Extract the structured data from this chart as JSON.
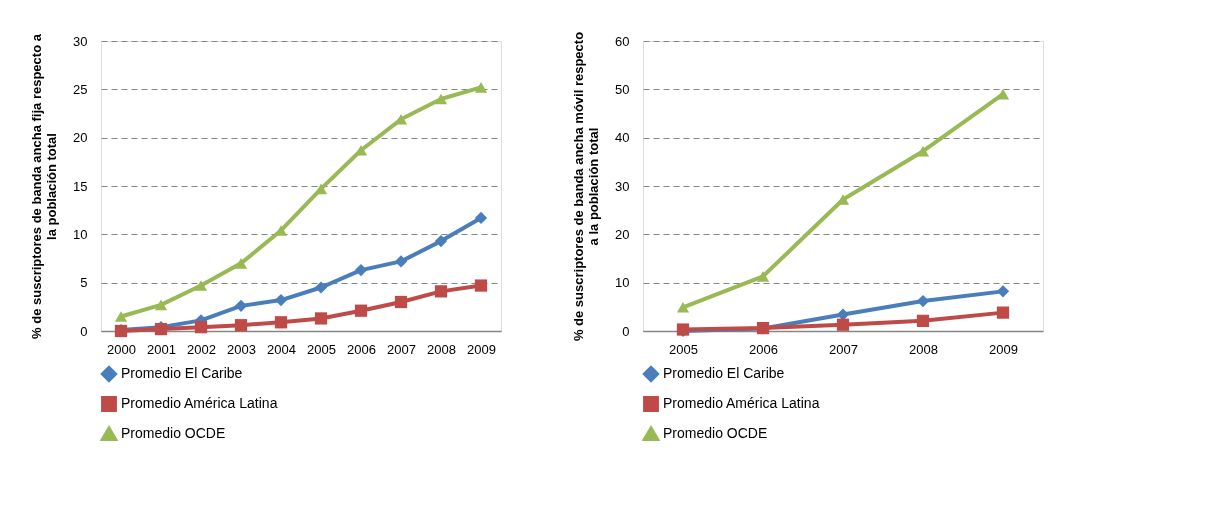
{
  "chart_data": [
    {
      "type": "line",
      "ylabel": "% de suscriptores de banda ancha fija respecto a\nla población total",
      "categories": [
        "2000",
        "2001",
        "2002",
        "2003",
        "2004",
        "2005",
        "2006",
        "2007",
        "2008",
        "2009"
      ],
      "series": [
        {
          "name": "Promedio El Caribe",
          "color": "#4a7ebb",
          "marker": "diamond",
          "values": [
            0.1,
            0.4,
            1.1,
            2.6,
            3.2,
            4.5,
            6.3,
            7.2,
            9.3,
            11.7
          ]
        },
        {
          "name": "Promedio América Latina",
          "color": "#be4b48",
          "marker": "square",
          "values": [
            0.0,
            0.2,
            0.4,
            0.6,
            0.9,
            1.3,
            2.1,
            3.0,
            4.1,
            4.7
          ]
        },
        {
          "name": "Promedio OCDE",
          "color": "#98b954",
          "marker": "triangle",
          "values": [
            1.5,
            2.7,
            4.7,
            7.0,
            10.4,
            14.7,
            18.7,
            21.9,
            24.0,
            25.2
          ]
        }
      ],
      "ylim": [
        0,
        30
      ],
      "yticks": [
        0,
        5,
        10,
        15,
        20,
        25,
        30
      ],
      "grid": "y",
      "legend": "bottom",
      "line_style": "solid"
    },
    {
      "type": "line",
      "ylabel": "% de suscriptores de banda ancha móvil respecto\na la población total",
      "categories": [
        "2005",
        "2006",
        "2007",
        "2008",
        "2009"
      ],
      "series": [
        {
          "name": "Promedio El Caribe",
          "color": "#4a7ebb",
          "marker": "diamond",
          "values": [
            0.0,
            0.5,
            3.4,
            6.2,
            8.2
          ]
        },
        {
          "name": "Promedio América Latina",
          "color": "#be4b48",
          "marker": "square",
          "values": [
            0.3,
            0.6,
            1.3,
            2.1,
            3.8
          ]
        },
        {
          "name": "Promedio OCDE",
          "color": "#98b954",
          "marker": "triangle",
          "values": [
            4.9,
            11.3,
            27.2,
            37.2,
            49.0
          ]
        }
      ],
      "ylim": [
        0,
        60
      ],
      "yticks": [
        0,
        10,
        20,
        30,
        40,
        50,
        60
      ],
      "grid": "y",
      "legend": "bottom",
      "line_style": "solid"
    }
  ]
}
